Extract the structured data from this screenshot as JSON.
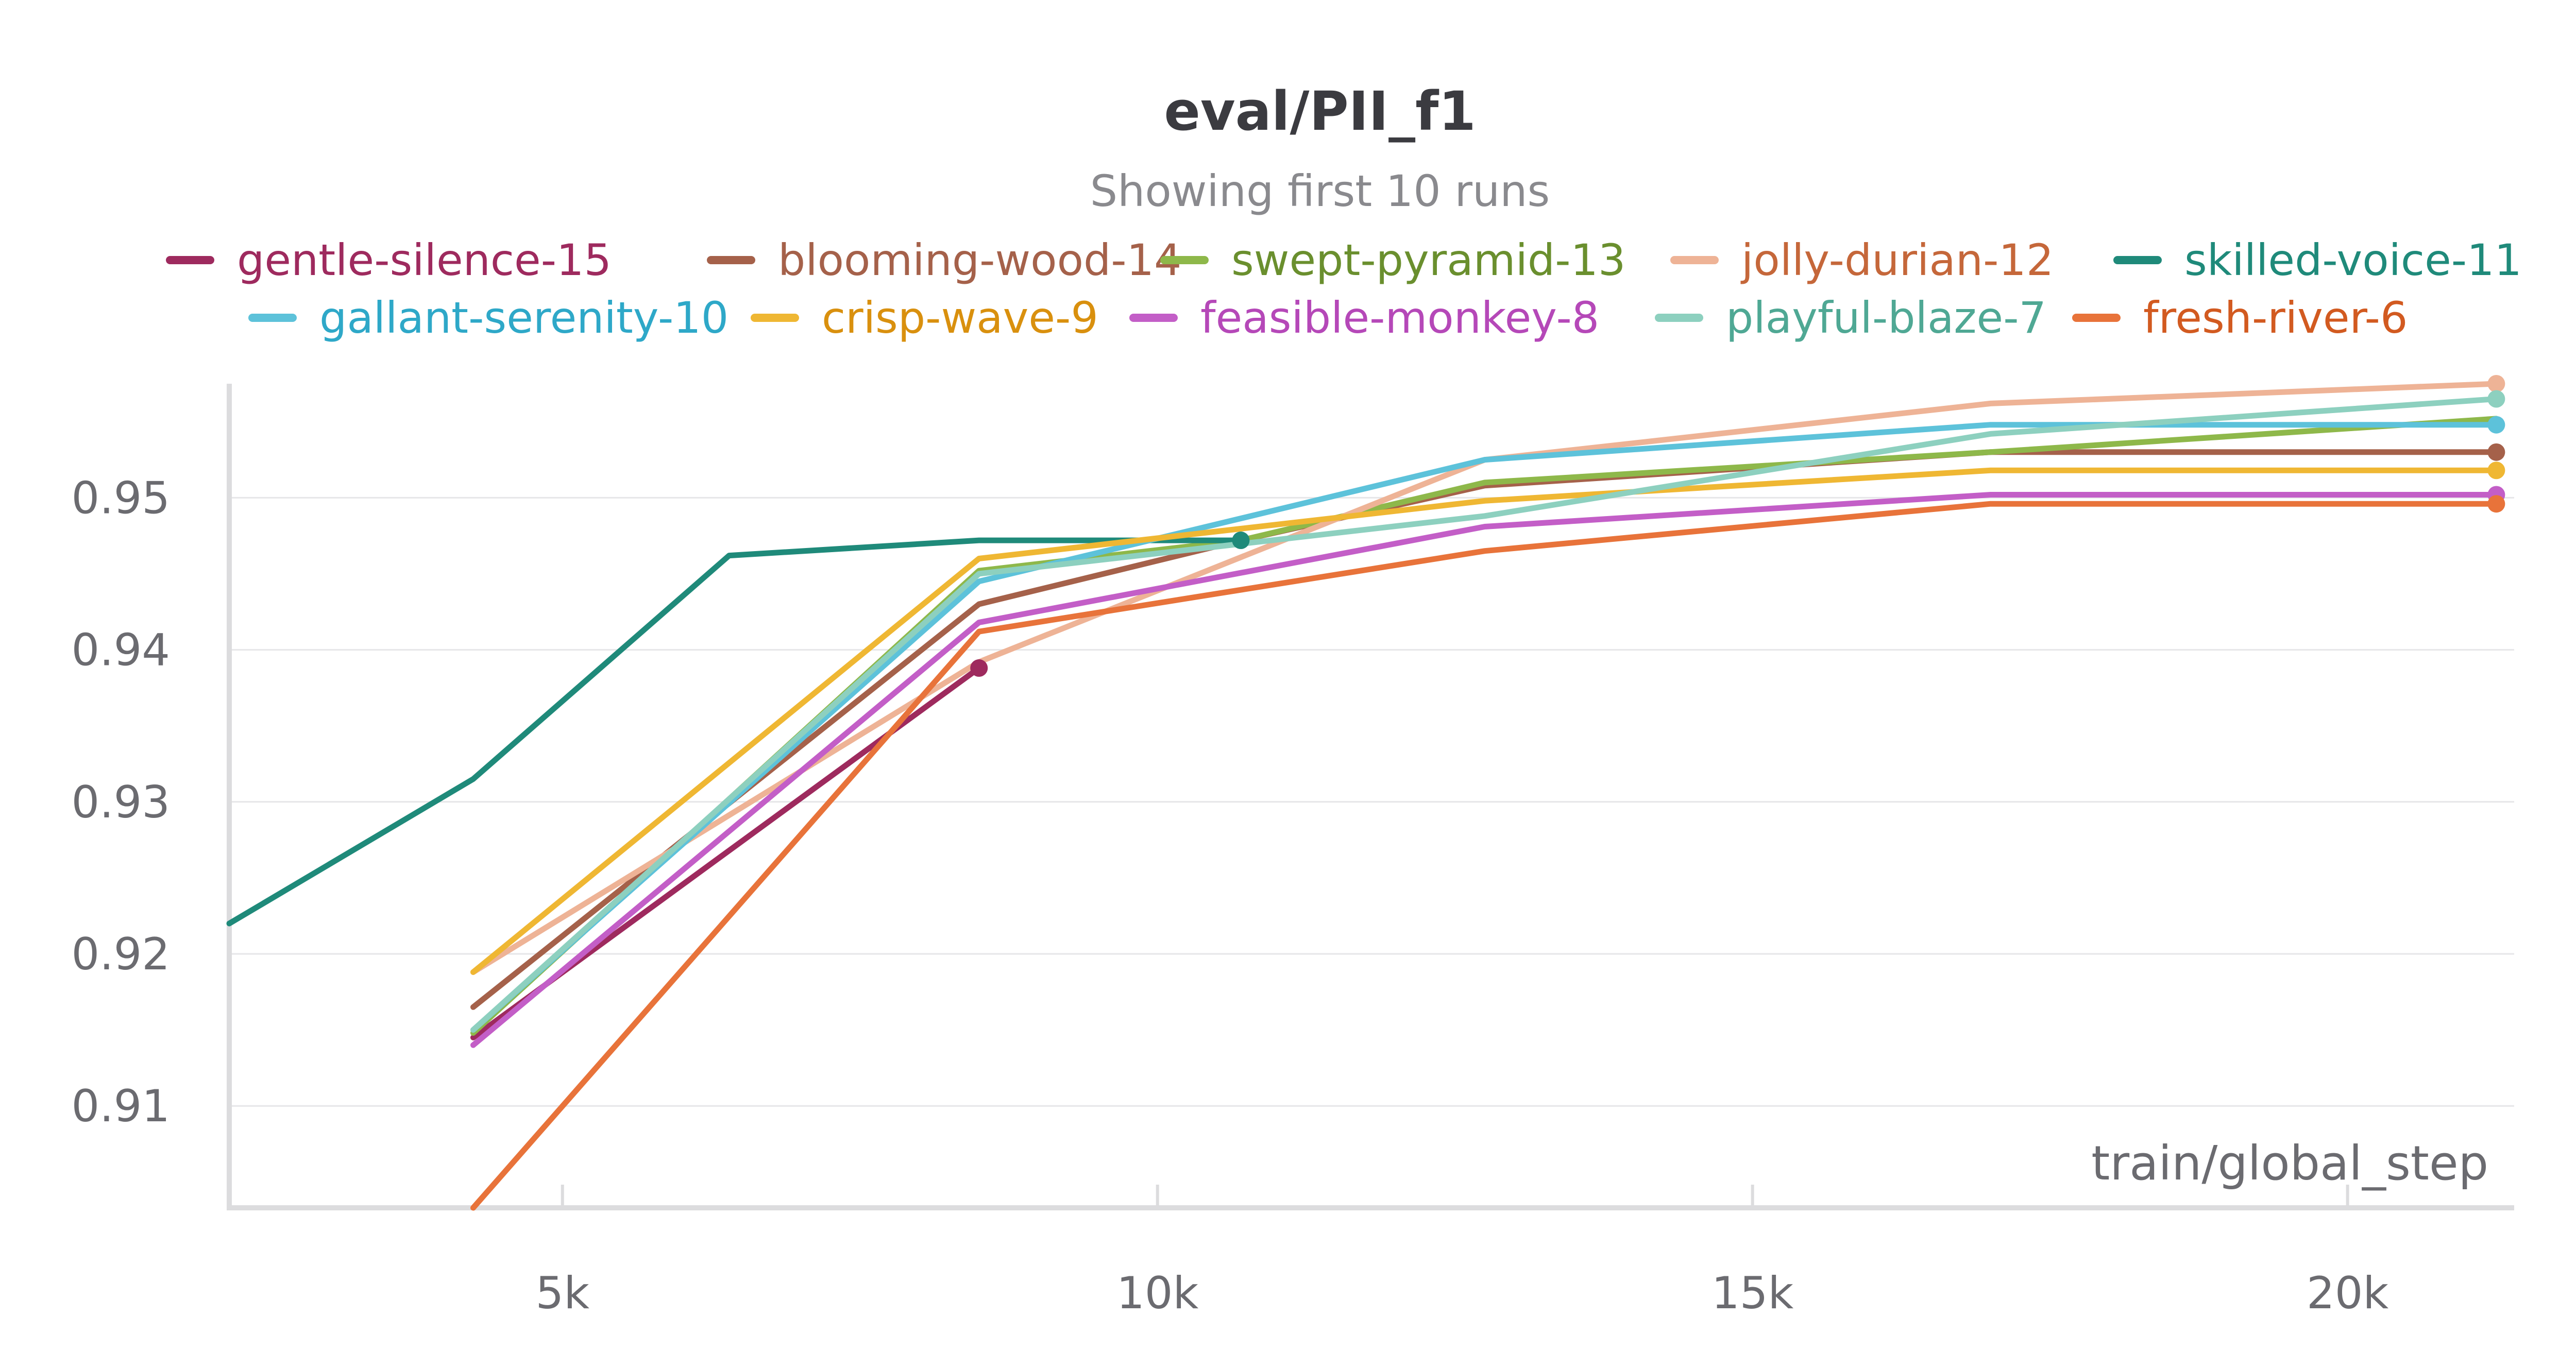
{
  "chart_data": {
    "type": "line",
    "title": "eval/PII_f1",
    "subtitle": "Showing first 10 runs",
    "xlabel": "train/global_step",
    "ylabel": "",
    "xlim": [
      2200,
      21400
    ],
    "ylim": [
      0.9033,
      0.9575
    ],
    "x_ticks": [
      5000,
      10000,
      15000,
      20000
    ],
    "x_tick_labels": [
      "5k",
      "10k",
      "15k",
      "20k"
    ],
    "y_ticks": [
      0.91,
      0.92,
      0.93,
      0.94,
      0.95
    ],
    "y_tick_labels": [
      "0.91",
      "0.92",
      "0.93",
      "0.94",
      "0.95"
    ],
    "grid": true,
    "legend_placement": "top",
    "series": [
      {
        "name": "gentle-silence-15",
        "color": "#9e2a5e",
        "legend_color": "#9e2a5e",
        "x": [
          4250,
          8500
        ],
        "y": [
          0.9145,
          0.9388
        ],
        "end_marker": true
      },
      {
        "name": "blooming-wood-14",
        "color": "#a5614a",
        "legend_color": "#a5614a",
        "x": [
          4250,
          8500,
          10700,
          12750,
          17000,
          21250
        ],
        "y": [
          0.9165,
          0.943,
          0.9472,
          0.9508,
          0.953,
          0.953
        ],
        "end_marker": true
      },
      {
        "name": "swept-pyramid-13",
        "color": "#8eb84a",
        "legend_color": "#6a8f2e",
        "x": [
          4250,
          8500,
          10700,
          12750,
          17000,
          21250
        ],
        "y": [
          0.9148,
          0.9452,
          0.9472,
          0.951,
          0.953,
          0.9552
        ],
        "end_marker": false
      },
      {
        "name": "jolly-durian-12",
        "color": "#eeb396",
        "legend_color": "#c5673a",
        "x": [
          4250,
          8500,
          12750,
          17000,
          21250
        ],
        "y": [
          0.9188,
          0.9392,
          0.9525,
          0.9562,
          0.9575
        ],
        "end_marker": true
      },
      {
        "name": "skilled-voice-11",
        "color": "#1f8a7a",
        "legend_color": "#1f8a7a",
        "x": [
          2200,
          4250,
          6400,
          8500,
          10700
        ],
        "y": [
          0.922,
          0.9315,
          0.9462,
          0.9472,
          0.9472
        ],
        "end_marker": true
      },
      {
        "name": "gallant-serenity-10",
        "color": "#5dc2da",
        "legend_color": "#2ea8c8",
        "x": [
          4250,
          8500,
          12750,
          17000,
          21250
        ],
        "y": [
          0.915,
          0.9445,
          0.9525,
          0.9548,
          0.9548
        ],
        "end_marker": true
      },
      {
        "name": "crisp-wave-9",
        "color": "#efb733",
        "legend_color": "#d9900e",
        "x": [
          4250,
          8500,
          12750,
          17000,
          21250
        ],
        "y": [
          0.9188,
          0.946,
          0.9498,
          0.9518,
          0.9518
        ],
        "end_marker": true
      },
      {
        "name": "feasible-monkey-8",
        "color": "#c35ec7",
        "legend_color": "#b548b8",
        "x": [
          4250,
          8500,
          12750,
          17000,
          21250
        ],
        "y": [
          0.914,
          0.9418,
          0.9481,
          0.9502,
          0.9502
        ],
        "end_marker": true
      },
      {
        "name": "playful-blaze-7",
        "color": "#8dd0bf",
        "legend_color": "#4fa894",
        "x": [
          4250,
          8500,
          12750,
          17000,
          21250
        ],
        "y": [
          0.915,
          0.945,
          0.9488,
          0.9542,
          0.9565
        ],
        "end_marker": true
      },
      {
        "name": "fresh-river-6",
        "color": "#e8733a",
        "legend_color": "#d25a20",
        "x": [
          4250,
          8500,
          12750,
          17000,
          21250
        ],
        "y": [
          0.9033,
          0.9412,
          0.9465,
          0.9496,
          0.9496
        ],
        "end_marker": true
      }
    ]
  }
}
